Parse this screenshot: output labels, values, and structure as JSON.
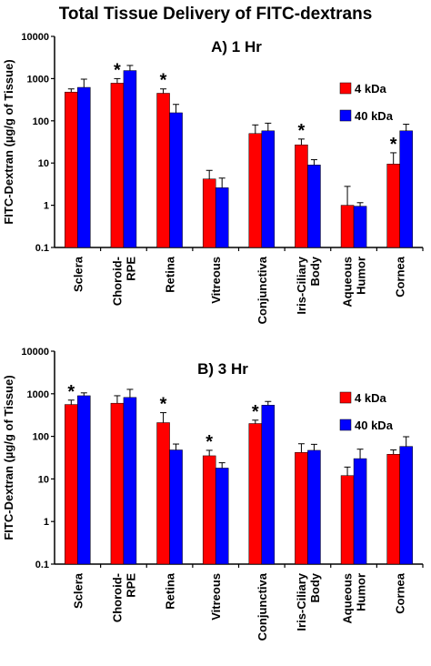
{
  "title": "Total Tissue Delivery of FITC-dextrans",
  "chart_data": [
    {
      "type": "bar",
      "panel_title": "A) 1 Hr",
      "ylabel": "FITC-Dextran (µg/g of Tissue)",
      "yscale": "log",
      "ylim": [
        0.1,
        10000
      ],
      "yticks": [
        "10000",
        "1000",
        "100",
        "10",
        "1",
        "0.1"
      ],
      "categories": [
        [
          "Sclera"
        ],
        [
          "Choroid-",
          "RPE"
        ],
        [
          "Retina"
        ],
        [
          "Vitreous"
        ],
        [
          "Conjunctiva"
        ],
        [
          "Iris-Ciliary",
          "Body"
        ],
        [
          "Aqueous",
          "Humor"
        ],
        [
          "Cornea"
        ]
      ],
      "series": [
        {
          "name": "4 kDa",
          "color": "#ff0000",
          "values": [
            480,
            780,
            450,
            4.2,
            50,
            27,
            1.0,
            9.5
          ],
          "err": [
            90,
            220,
            120,
            2.5,
            30,
            10,
            1.8,
            8
          ]
        },
        {
          "name": "40 kDa",
          "color": "#0000ff",
          "values": [
            620,
            1550,
            155,
            2.6,
            58,
            9,
            0.95,
            58
          ],
          "err": [
            350,
            500,
            90,
            1.8,
            30,
            3,
            0.2,
            25
          ]
        }
      ],
      "significant": [
        false,
        true,
        true,
        false,
        false,
        true,
        false,
        true
      ],
      "legend_position": "top-right",
      "grid": false
    },
    {
      "type": "bar",
      "panel_title": "B) 3 Hr",
      "ylabel": "FITC-Dextran (µg/g of Tissue)",
      "yscale": "log",
      "ylim": [
        0.1,
        10000
      ],
      "yticks": [
        "10000",
        "1000",
        "100",
        "10",
        "1",
        "0.1"
      ],
      "categories": [
        [
          "Sclera"
        ],
        [
          "Choroid-",
          "RPE"
        ],
        [
          "Retina"
        ],
        [
          "Vitreous"
        ],
        [
          "Conjunctiva"
        ],
        [
          "Iris-Ciliary",
          "Body"
        ],
        [
          "Aqueous",
          "Humor"
        ],
        [
          "Cornea"
        ]
      ],
      "series": [
        {
          "name": "4 kDa",
          "color": "#ff0000",
          "values": [
            560,
            600,
            210,
            35,
            200,
            42,
            12,
            38
          ],
          "err": [
            150,
            300,
            150,
            12,
            40,
            25,
            7,
            10
          ]
        },
        {
          "name": "40 kDa",
          "color": "#0000ff",
          "values": [
            900,
            820,
            48,
            18,
            540,
            47,
            30,
            58
          ],
          "err": [
            150,
            450,
            18,
            6,
            120,
            18,
            20,
            40
          ]
        }
      ],
      "significant": [
        true,
        false,
        true,
        true,
        true,
        false,
        false,
        false
      ],
      "legend_position": "top-right",
      "grid": false
    }
  ]
}
